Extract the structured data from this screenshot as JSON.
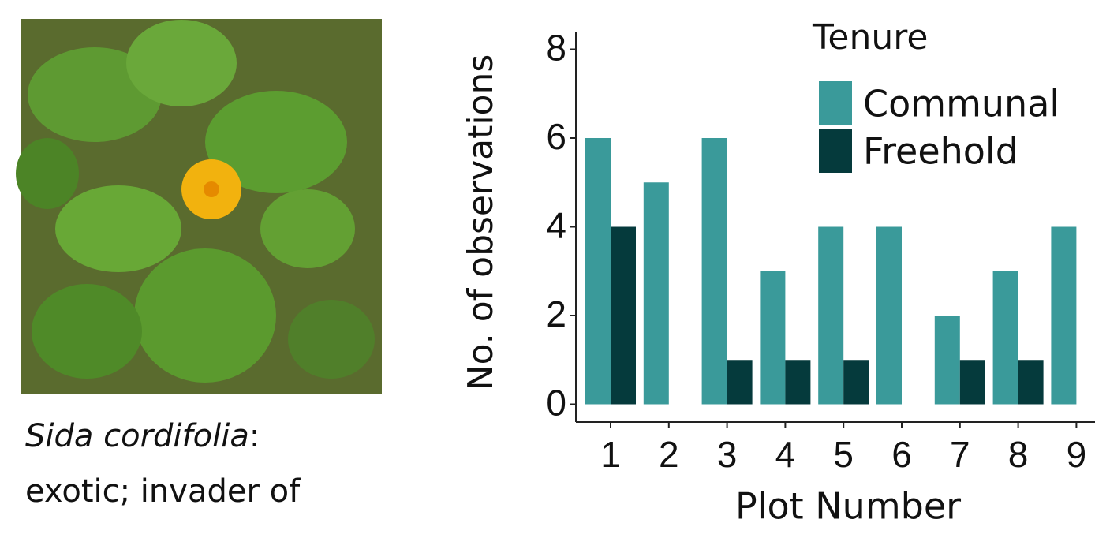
{
  "caption": {
    "name": "Sida cordifolia",
    "name_suffix": ":",
    "line2": "exotic; invader of"
  },
  "chart_data": {
    "type": "bar",
    "y_label": "No. of observations",
    "x_label": "Plot Number",
    "categories": [
      "1",
      "2",
      "3",
      "4",
      "5",
      "6",
      "7",
      "8",
      "9"
    ],
    "series": [
      {
        "name": "Communal",
        "color": "#3a9a9a",
        "values": [
          6,
          5,
          6,
          3,
          4,
          4,
          2,
          3,
          4
        ]
      },
      {
        "name": "Freehold",
        "color": "#053a3c",
        "values": [
          4,
          0,
          1,
          1,
          1,
          0,
          1,
          1,
          0
        ]
      }
    ],
    "legend_title": "Tenure",
    "legend": "top-right",
    "ylim": [
      -0.4,
      8.4
    ],
    "yticks": [
      0,
      2,
      4,
      6,
      8
    ],
    "grid": false
  }
}
